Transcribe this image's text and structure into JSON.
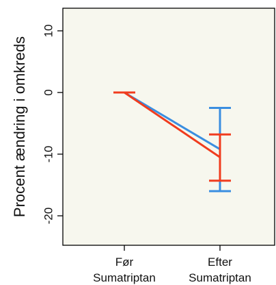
{
  "chart_data": {
    "type": "line",
    "title": "",
    "xlabel": "",
    "ylabel": "Procent ændring i omkreds",
    "ylim": [
      -25,
      13
    ],
    "yticks": [
      10,
      0,
      -10,
      -20
    ],
    "ytick_labels": [
      "10",
      "0",
      "-10",
      "-20"
    ],
    "categories": [
      {
        "line1": "Før",
        "line2": "Sumatriptan"
      },
      {
        "line1": "Efter",
        "line2": "Sumatriptan"
      }
    ],
    "grid": false,
    "background": "#f7f7ee",
    "series": [
      {
        "color": "#3a8ee0",
        "values": [
          0,
          -9.2
        ],
        "error_low": [
          0,
          -16
        ],
        "error_high": [
          0,
          -2.5
        ]
      },
      {
        "color": "#f03c1e",
        "values": [
          0,
          -10.5
        ],
        "error_low": [
          0,
          -14.3
        ],
        "error_high": [
          0,
          -6.8
        ]
      }
    ]
  }
}
